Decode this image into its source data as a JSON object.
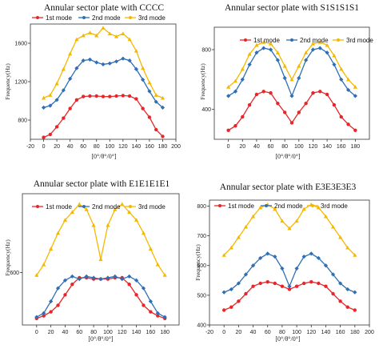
{
  "colors": {
    "mode1": "#e8262a",
    "mode2": "#2f6fb4",
    "mode3": "#f5b800"
  },
  "chart_data": [
    {
      "type": "line",
      "title": "Annular sector plate with CCCC",
      "xlabel": "[0°/θ°/0°]",
      "ylabel": "Frequency(Hz)",
      "xlim": [
        -20,
        200
      ],
      "ylim": [
        600,
        1800
      ],
      "xticks": [
        -20,
        0,
        20,
        40,
        60,
        80,
        100,
        120,
        140,
        160,
        180,
        200
      ],
      "yticks": [
        800,
        1200,
        1600
      ],
      "legend": "top",
      "x": [
        0,
        10,
        20,
        30,
        40,
        50,
        60,
        70,
        80,
        90,
        100,
        110,
        120,
        130,
        140,
        150,
        160,
        170,
        180
      ],
      "series": [
        {
          "name": "1st mode",
          "color_key": "mode1",
          "values": [
            620,
            650,
            730,
            820,
            920,
            1010,
            1045,
            1050,
            1050,
            1045,
            1045,
            1050,
            1055,
            1050,
            1020,
            920,
            830,
            700,
            630
          ]
        },
        {
          "name": "2nd mode",
          "color_key": "mode2",
          "values": [
            930,
            950,
            1010,
            1110,
            1230,
            1340,
            1420,
            1430,
            1400,
            1380,
            1390,
            1410,
            1440,
            1420,
            1330,
            1220,
            1100,
            990,
            930
          ]
        },
        {
          "name": "3rd mode",
          "color_key": "mode3",
          "values": [
            1030,
            1060,
            1180,
            1330,
            1490,
            1640,
            1680,
            1710,
            1680,
            1760,
            1700,
            1670,
            1700,
            1640,
            1520,
            1340,
            1190,
            1060,
            1030
          ]
        }
      ]
    },
    {
      "type": "line",
      "title": "Annular sector plate with S1S1S1S1",
      "xlabel": "[0°/θ°/0°]",
      "ylabel": "Frequency(Hz)",
      "xlim": [
        -20,
        200
      ],
      "ylim": [
        200,
        950
      ],
      "xticks": [
        0,
        20,
        40,
        60,
        80,
        100,
        120,
        140,
        160,
        180
      ],
      "yticks": [
        400,
        800
      ],
      "legend": "top",
      "x": [
        0,
        10,
        20,
        30,
        40,
        50,
        60,
        70,
        80,
        90,
        100,
        110,
        120,
        130,
        140,
        150,
        160,
        170,
        180
      ],
      "series": [
        {
          "name": "1st mode",
          "color_key": "mode1",
          "values": [
            260,
            290,
            350,
            430,
            500,
            520,
            510,
            440,
            380,
            310,
            380,
            440,
            510,
            520,
            500,
            430,
            350,
            300,
            260
          ]
        },
        {
          "name": "2nd mode",
          "color_key": "mode2",
          "values": [
            490,
            520,
            600,
            700,
            780,
            810,
            800,
            730,
            610,
            490,
            610,
            730,
            800,
            810,
            780,
            700,
            600,
            530,
            490
          ]
        },
        {
          "name": "3rd mode",
          "color_key": "mode3",
          "values": [
            550,
            590,
            670,
            770,
            830,
            850,
            840,
            780,
            690,
            600,
            690,
            780,
            840,
            850,
            830,
            760,
            670,
            600,
            550
          ]
        }
      ]
    },
    {
      "type": "line",
      "title": "Annular sector plate with E1E1E1E1",
      "xlabel": "[0°/θ°/0°]",
      "ylabel": "Frequency(Hz)",
      "xlim": [
        -20,
        200
      ],
      "ylim": [
        400,
        900
      ],
      "xticks": [
        0,
        20,
        40,
        60,
        80,
        100,
        120,
        140,
        160,
        180
      ],
      "yticks": [
        600
      ],
      "legend": "top",
      "x": [
        0,
        10,
        20,
        30,
        40,
        50,
        60,
        70,
        80,
        90,
        100,
        110,
        120,
        130,
        140,
        150,
        160,
        170,
        180
      ],
      "series": [
        {
          "name": "1st mode",
          "color_key": "mode1",
          "values": [
            425,
            435,
            450,
            475,
            515,
            555,
            580,
            580,
            575,
            575,
            575,
            580,
            580,
            555,
            515,
            475,
            450,
            435,
            425
          ]
        },
        {
          "name": "2nd mode",
          "color_key": "mode2",
          "values": [
            430,
            445,
            490,
            540,
            570,
            585,
            575,
            585,
            580,
            575,
            580,
            585,
            575,
            585,
            570,
            540,
            490,
            445,
            430
          ]
        },
        {
          "name": "3rd mode",
          "color_key": "mode3",
          "values": [
            590,
            630,
            690,
            750,
            800,
            830,
            860,
            840,
            780,
            650,
            780,
            840,
            860,
            830,
            800,
            750,
            690,
            630,
            590
          ]
        }
      ]
    },
    {
      "type": "line",
      "title": "Annular sector plate with E3E3E3E3",
      "xlabel": "[0°/θ°/0°]",
      "ylabel": "Frequency(Hz)",
      "xlim": [
        -20,
        200
      ],
      "ylim": [
        400,
        820
      ],
      "xticks": [
        -20,
        0,
        20,
        40,
        60,
        80,
        100,
        120,
        140,
        160,
        180,
        200
      ],
      "yticks": [
        400,
        500,
        600,
        700,
        800
      ],
      "legend": "top",
      "x": [
        0,
        10,
        20,
        30,
        40,
        50,
        60,
        70,
        80,
        90,
        100,
        110,
        120,
        130,
        140,
        150,
        160,
        170,
        180
      ],
      "series": [
        {
          "name": "1st mode",
          "color_key": "mode1",
          "values": [
            450,
            460,
            480,
            505,
            530,
            540,
            545,
            540,
            530,
            520,
            530,
            540,
            545,
            540,
            530,
            505,
            480,
            460,
            450
          ]
        },
        {
          "name": "2nd mode",
          "color_key": "mode2",
          "values": [
            510,
            520,
            540,
            570,
            600,
            625,
            640,
            630,
            590,
            530,
            590,
            630,
            640,
            625,
            600,
            570,
            540,
            520,
            510
          ]
        },
        {
          "name": "3rd mode",
          "color_key": "mode3",
          "values": [
            635,
            660,
            695,
            730,
            765,
            795,
            805,
            790,
            750,
            725,
            750,
            790,
            805,
            795,
            765,
            730,
            695,
            660,
            635
          ]
        }
      ]
    }
  ]
}
